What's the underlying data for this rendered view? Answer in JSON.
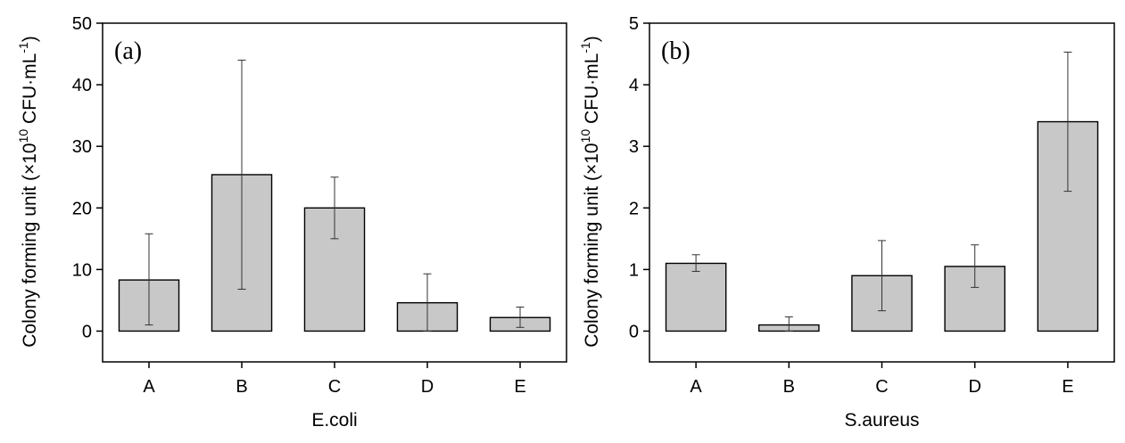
{
  "chart_data": [
    {
      "type": "bar",
      "panel_label": "(a)",
      "categories": [
        "A",
        "B",
        "C",
        "D",
        "E"
      ],
      "values": [
        8.3,
        25.4,
        20.0,
        4.6,
        2.2
      ],
      "error_low": [
        1.0,
        6.8,
        15.0,
        0.0,
        0.6
      ],
      "error_high": [
        15.8,
        44.0,
        25.0,
        9.3,
        3.9
      ],
      "xlabel": "E.coli",
      "ylabel": {
        "prefix": "Colony forming unit (×10",
        "exp1": "10",
        "mid": " CFU·mL",
        "exp2": "-1",
        "suffix": ")"
      },
      "ylim": [
        -5,
        50
      ],
      "yticks": [
        0,
        10,
        20,
        30,
        40,
        50
      ],
      "bar_color": "#c8c8c8"
    },
    {
      "type": "bar",
      "panel_label": "(b)",
      "categories": [
        "A",
        "B",
        "C",
        "D",
        "E"
      ],
      "values": [
        1.1,
        0.1,
        0.9,
        1.05,
        3.4
      ],
      "error_low": [
        0.97,
        0.0,
        0.33,
        0.71,
        2.27
      ],
      "error_high": [
        1.24,
        0.23,
        1.47,
        1.4,
        4.53
      ],
      "xlabel": "S.aureus",
      "ylabel": {
        "prefix": "Colony forming unit (×10",
        "exp1": "10",
        "mid": " CFU·mL",
        "exp2": "-1",
        "suffix": ")"
      },
      "ylim": [
        -0.5,
        5
      ],
      "yticks": [
        0,
        1,
        2,
        3,
        4,
        5
      ],
      "bar_color": "#c8c8c8"
    }
  ]
}
